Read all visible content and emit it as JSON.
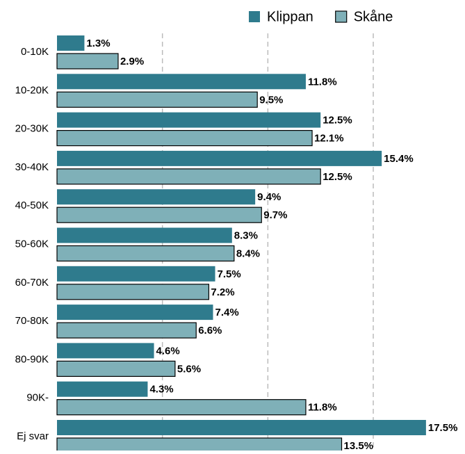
{
  "chart_data": {
    "type": "barh",
    "categories": [
      "0-10K",
      "10-20K",
      "20-30K",
      "30-40K",
      "40-50K",
      "50-60K",
      "60-70K",
      "70-80K",
      "80-90K",
      "90K-",
      "Ej svar"
    ],
    "series": [
      {
        "name": "Klippan",
        "color": "#2f7b8d",
        "values": [
          1.3,
          11.8,
          12.5,
          15.4,
          9.4,
          8.3,
          7.5,
          7.4,
          4.6,
          4.3,
          17.5
        ],
        "value_labels": [
          "1.3%",
          "11.8%",
          "12.5%",
          "15.4%",
          "9.4%",
          "8.3%",
          "7.5%",
          "7.4%",
          "4.6%",
          "4.3%",
          "17.5%"
        ]
      },
      {
        "name": "Skåne",
        "color": "#7fb0b8",
        "values": [
          2.9,
          9.5,
          12.1,
          12.5,
          9.7,
          8.4,
          7.2,
          6.6,
          5.6,
          11.8,
          13.5
        ],
        "value_labels": [
          "2.9%",
          "9.5%",
          "12.1%",
          "12.5%",
          "9.7%",
          "8.4%",
          "7.2%",
          "6.6%",
          "5.6%",
          "11.8%",
          "13.5%"
        ]
      }
    ],
    "xlim": [
      0,
      19.35
    ],
    "xticks": [
      5,
      10,
      15
    ],
    "grid": true,
    "legend": "top-right"
  }
}
